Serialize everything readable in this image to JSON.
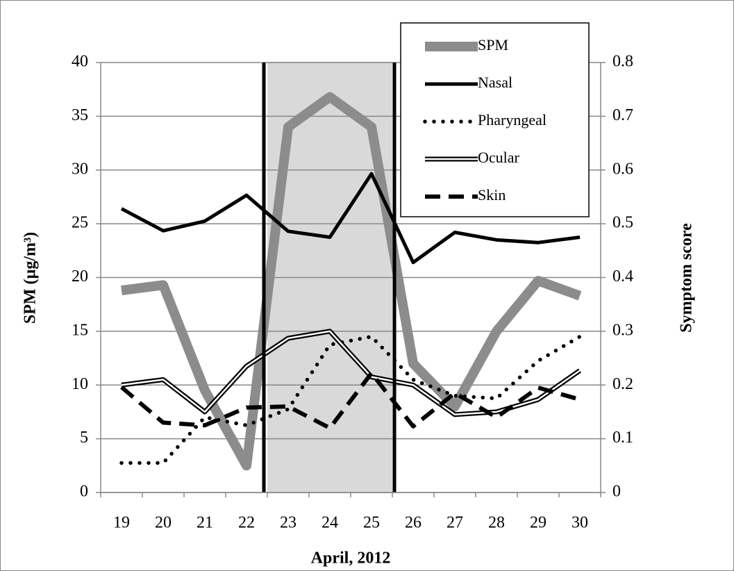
{
  "chart_data": {
    "type": "line",
    "x_label": "April, 2012",
    "y_label": "SPM (µg/m³)",
    "y2_label": "Symptom score",
    "categories": [
      "19",
      "20",
      "21",
      "22",
      "23",
      "24",
      "25",
      "26",
      "27",
      "28",
      "29",
      "30"
    ],
    "ylim": [
      0,
      40
    ],
    "yticks": [
      0,
      5,
      10,
      15,
      20,
      25,
      30,
      35,
      40
    ],
    "y2lim": [
      0,
      0.8
    ],
    "y2ticks": [
      0,
      0.1,
      0.2,
      0.3,
      0.4,
      0.5,
      0.6,
      0.7,
      0.8
    ],
    "grid": true,
    "legend": "upper right",
    "series": [
      {
        "name": "SPM",
        "color": "#8c8c8c",
        "style": "thick",
        "values": [
          18.8,
          19.3,
          9.5,
          2.5,
          34,
          36.8,
          34,
          12,
          8,
          15,
          19.7,
          18.3
        ]
      },
      {
        "name": "Nasal",
        "color": "#000000",
        "style": "solid",
        "axis": "y2",
        "values": [
          0.528,
          0.487,
          0.505,
          0.553,
          0.486,
          0.475,
          0.593,
          0.428,
          0.484,
          0.47,
          0.465,
          0.475
        ]
      },
      {
        "name": "Pharyngeal",
        "color": "#000000",
        "style": "dotted",
        "axis": "y2",
        "values": [
          0.055,
          0.055,
          0.14,
          0.125,
          0.155,
          0.275,
          0.29,
          0.21,
          0.18,
          0.175,
          0.245,
          0.29
        ]
      },
      {
        "name": "Ocular",
        "color": "#000000",
        "style": "double",
        "axis": "y2",
        "values": [
          0.2,
          0.21,
          0.15,
          0.235,
          0.287,
          0.3,
          0.215,
          0.2,
          0.145,
          0.15,
          0.173,
          0.227
        ]
      },
      {
        "name": "Skin",
        "color": "#000000",
        "style": "dashed",
        "axis": "y2",
        "values": [
          0.196,
          0.13,
          0.125,
          0.158,
          0.16,
          0.12,
          0.222,
          0.123,
          0.185,
          0.14,
          0.195,
          0.173
        ]
      }
    ]
  }
}
